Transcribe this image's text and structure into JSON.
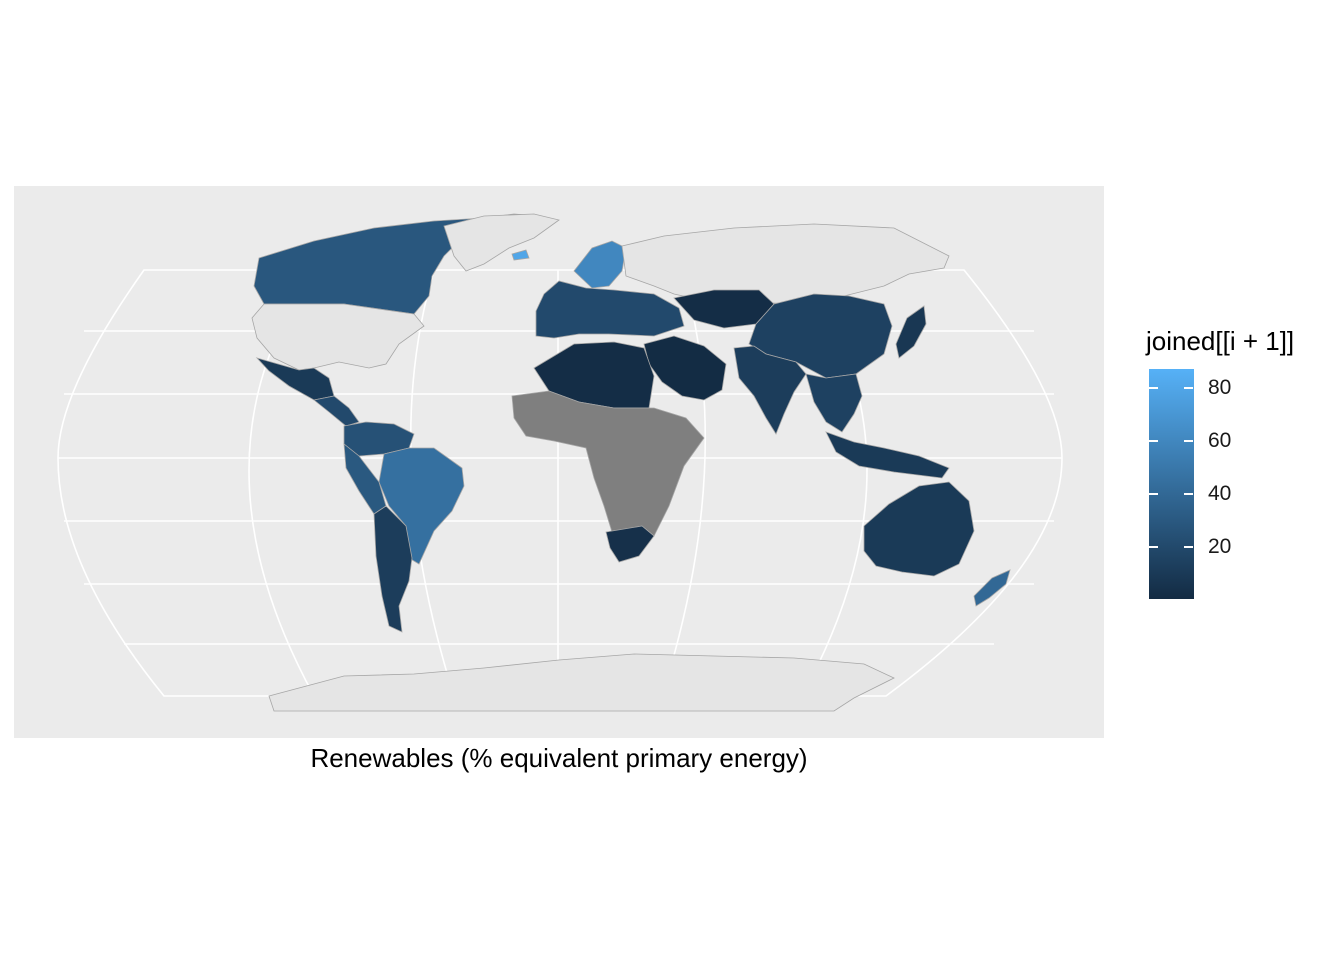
{
  "map": {
    "caption": "Renewables (% equivalent primary energy)",
    "panel_background": "#EBEBEB",
    "graticule_color": "#FFFFFF",
    "no_data_color": "#7F7F7F",
    "unmatched_color": "#E5E5E5",
    "border_color": "#A6A6A6"
  },
  "legend": {
    "title": "joined[[i + 1]]",
    "ticks": [
      "80",
      "60",
      "40",
      "20"
    ],
    "tick_values": [
      80,
      60,
      40,
      20
    ],
    "range": [
      0.5,
      87
    ],
    "low_color": "#132B43",
    "high_color": "#56B1F7"
  },
  "regions": [
    {
      "name": "Canada",
      "value": 29
    },
    {
      "name": "Greenland",
      "value": null
    },
    {
      "name": "United States",
      "value": null
    },
    {
      "name": "Mexico",
      "value": 10
    },
    {
      "name": "Central America",
      "value": 20
    },
    {
      "name": "Venezuela / Colombia",
      "value": 25
    },
    {
      "name": "Brazil",
      "value": 45
    },
    {
      "name": "Peru / Ecuador",
      "value": 30
    },
    {
      "name": "Argentina / Chile",
      "value": 12
    },
    {
      "name": "Scandinavia",
      "value": 60
    },
    {
      "name": "Iceland",
      "value": 80
    },
    {
      "name": "Western Europe",
      "value": 20
    },
    {
      "name": "Russia",
      "value": null
    },
    {
      "name": "Kazakhstan",
      "value": 2
    },
    {
      "name": "China",
      "value": 15
    },
    {
      "name": "Japan",
      "value": 8
    },
    {
      "name": "India",
      "value": 12
    },
    {
      "name": "Middle East",
      "value": 1
    },
    {
      "name": "North Africa",
      "value": 2
    },
    {
      "name": "Africa",
      "value": null
    },
    {
      "name": "South Africa",
      "value": 4
    },
    {
      "name": "Southeast Asia",
      "value": 15
    },
    {
      "name": "Indonesia",
      "value": 10
    },
    {
      "name": "Australia",
      "value": 10
    },
    {
      "name": "New Zealand",
      "value": 40
    },
    {
      "name": "Antarctica",
      "value": null
    }
  ]
}
